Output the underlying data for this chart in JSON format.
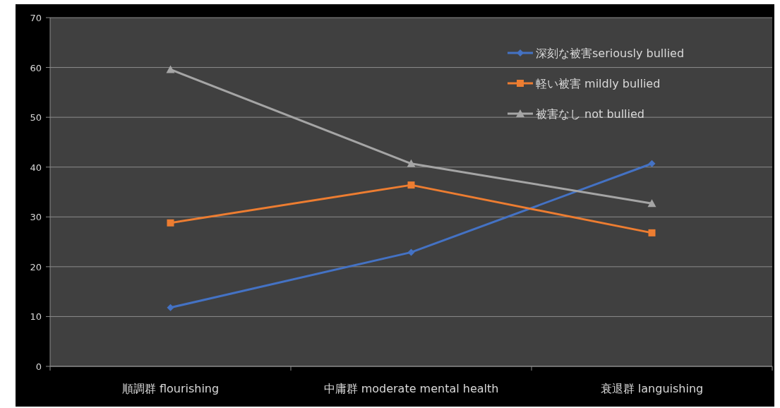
{
  "chart_data": {
    "type": "line",
    "categories": [
      "順調群 flourishing",
      "中庸群 moderate mental health",
      "衰退群 languishing"
    ],
    "series": [
      {
        "name": "深刻な被害seriously bullied",
        "color": "#4472c4",
        "marker": "diamond",
        "values": [
          11.8,
          22.9,
          40.7
        ]
      },
      {
        "name": "軽い被害 mildly bullied",
        "color": "#ed7d31",
        "marker": "square",
        "values": [
          28.8,
          36.4,
          26.8
        ]
      },
      {
        "name": "被害なし not bullied",
        "color": "#a5a5a5",
        "marker": "triangle",
        "values": [
          59.6,
          40.7,
          32.7
        ]
      }
    ],
    "ylim": [
      0,
      70
    ],
    "yticks": [
      0,
      10,
      20,
      30,
      40,
      50,
      60,
      70
    ],
    "grid": "y",
    "legend": "top right",
    "line_style": "solid"
  }
}
